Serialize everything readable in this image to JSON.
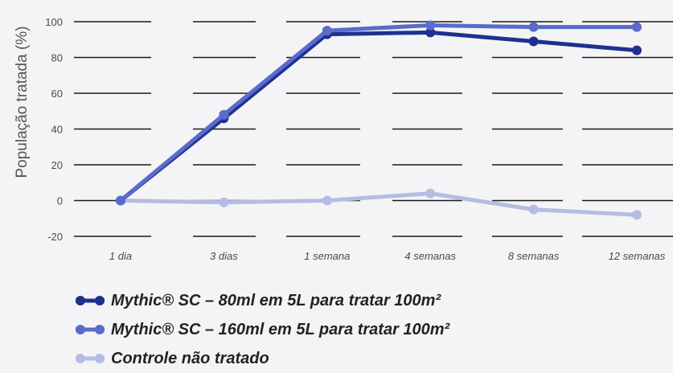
{
  "chart_data": {
    "type": "line",
    "categories": [
      "1 dia",
      "3 dias",
      "1 semana",
      "4 semanas",
      "8 semanas",
      "12 semanas"
    ],
    "ylabel": "População tratada (%)",
    "ylim": [
      -20,
      100
    ],
    "yticks": [
      100,
      80,
      60,
      40,
      20,
      0,
      -20
    ],
    "grid": true,
    "legend_position": "bottom",
    "series": [
      {
        "name": "Mythic® SC – 80ml em 5L para tratar 100m²",
        "color": "#1e3190",
        "values": [
          0,
          46,
          93,
          94,
          89,
          84
        ]
      },
      {
        "name": "Mythic® SC – 160ml em 5L para tratar 100m²",
        "color": "#5a6bcc",
        "values": [
          0,
          48,
          95,
          98,
          97,
          97
        ]
      },
      {
        "name": "Controle não tratado",
        "color": "#b5bce4",
        "values": [
          0,
          -1,
          0,
          4,
          -5,
          -8
        ]
      }
    ]
  }
}
